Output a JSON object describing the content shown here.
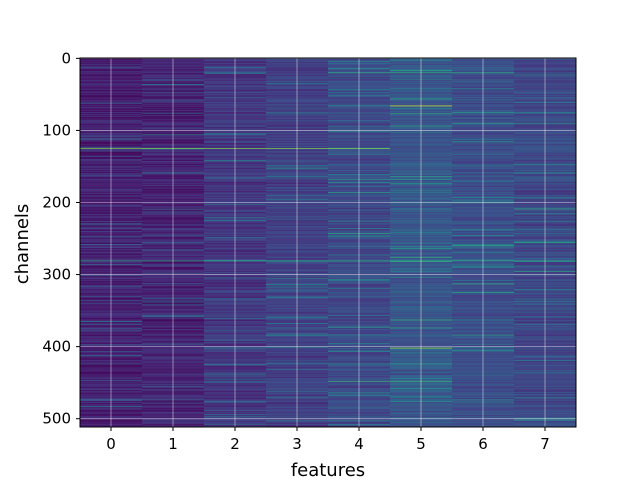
{
  "chart_data": {
    "type": "heatmap",
    "xlabel": "features",
    "ylabel": "channels",
    "x_ticks": [
      0,
      1,
      2,
      3,
      4,
      5,
      6,
      7
    ],
    "y_ticks": [
      0,
      100,
      200,
      300,
      400,
      500
    ],
    "xlim": [
      -0.5,
      7.5
    ],
    "ylim": [
      511.5,
      -0.5
    ],
    "n_rows": 512,
    "n_cols": 8,
    "grid": true,
    "colormap": "viridis",
    "column_base_intensity": [
      0.12,
      0.13,
      0.2,
      0.24,
      0.28,
      0.34,
      0.3,
      0.27
    ],
    "highlight_rows": [
      {
        "row": 125,
        "cols": [
          0,
          1,
          2,
          3,
          4
        ],
        "value": 0.85
      },
      {
        "row": 281,
        "cols": [
          0,
          1,
          2,
          3,
          4,
          5,
          6,
          7
        ],
        "value": 0.7
      },
      {
        "row": 66,
        "cols": [
          5
        ],
        "value": 0.95
      },
      {
        "row": 402,
        "cols": [
          5
        ],
        "value": 0.9
      },
      {
        "row": 448,
        "cols": [
          4,
          5
        ],
        "value": 0.75
      },
      {
        "row": 243,
        "cols": [
          4
        ],
        "value": 0.7
      },
      {
        "row": 20,
        "cols": [
          4,
          5,
          6
        ],
        "value": 0.7
      },
      {
        "row": 168,
        "cols": [
          4,
          5
        ],
        "value": 0.65
      },
      {
        "row": 260,
        "cols": [
          6
        ],
        "value": 0.7
      },
      {
        "row": 90,
        "cols": [
          6,
          7
        ],
        "value": 0.65
      }
    ]
  }
}
